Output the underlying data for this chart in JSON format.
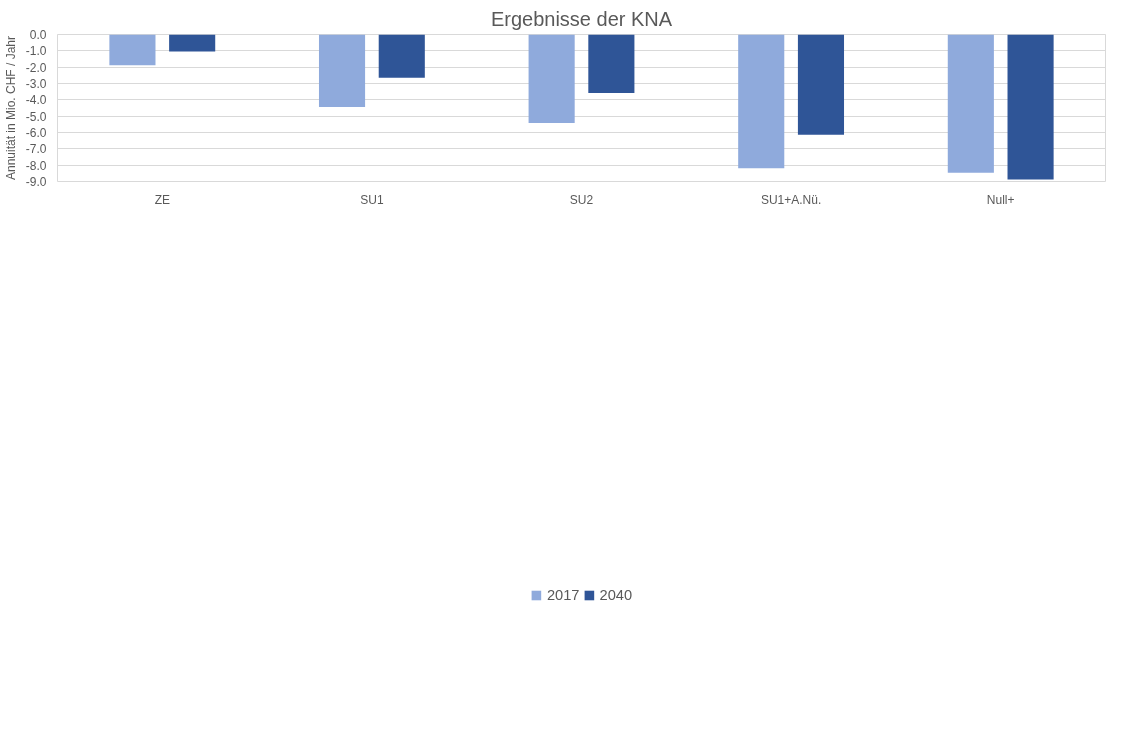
{
  "chart_data": {
    "type": "bar",
    "title": "Ergebnisse der KNA",
    "ylabel": "Annuität in Mio. CHF / Jahr",
    "categories": [
      "ZE",
      "SU1",
      "SU2",
      "SU1+A.Nü.",
      "Null+"
    ],
    "series": [
      {
        "name": "2017",
        "color": "#8faadc",
        "values": [
          -1.88,
          -4.44,
          -5.42,
          -8.19,
          -8.46
        ]
      },
      {
        "name": "2040",
        "color": "#2f5597",
        "values": [
          -1.04,
          -2.65,
          -3.58,
          -6.14,
          -8.88
        ]
      }
    ],
    "ylim": [
      -9,
      0
    ],
    "yticks": [
      {
        "value": 0,
        "label": "0.0"
      },
      {
        "value": -1,
        "label": "-1.0"
      },
      {
        "value": -2,
        "label": "-2.0"
      },
      {
        "value": -3,
        "label": "-3.0"
      },
      {
        "value": -4,
        "label": "-4.0"
      },
      {
        "value": -5,
        "label": "-5.0"
      },
      {
        "value": -6,
        "label": "-6.0"
      },
      {
        "value": -7,
        "label": "-7.0"
      },
      {
        "value": -8,
        "label": "-8.0"
      },
      {
        "value": -9,
        "label": "-9.0"
      }
    ],
    "grid": "y",
    "legend": "bottom"
  }
}
